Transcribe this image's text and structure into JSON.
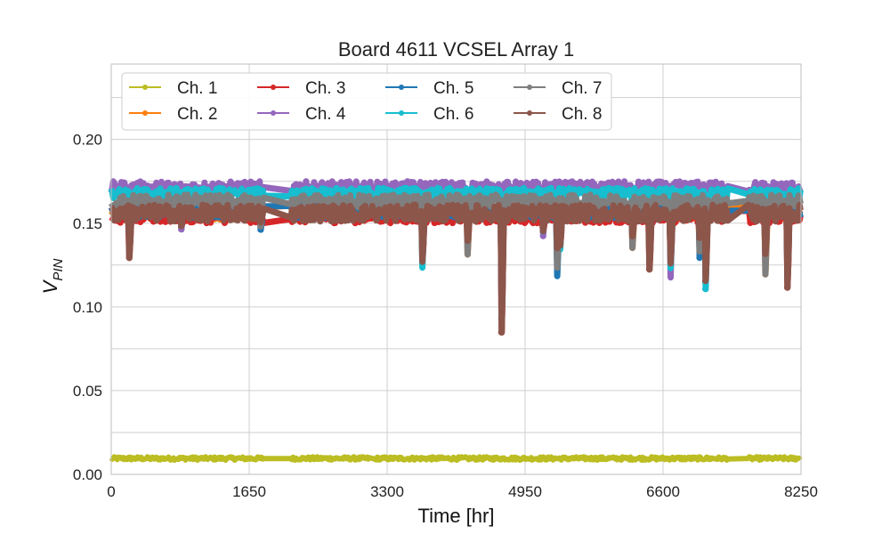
{
  "chart_data": {
    "type": "line",
    "title": "Board 4611 VCSEL Array 1",
    "xlabel": "Time [hr]",
    "ylabel_main": "V",
    "ylabel_sub": "PIN",
    "xlim": [
      0,
      8250
    ],
    "ylim": [
      0,
      0.245
    ],
    "xticks": [
      0,
      1650,
      3300,
      4950,
      6600,
      8250
    ],
    "xtick_labels": [
      "0",
      "1650",
      "3300",
      "4950",
      "6600",
      "8250"
    ],
    "yticks": [
      0.0,
      0.05,
      0.1,
      0.15,
      0.2
    ],
    "ytick_labels": [
      "0.00",
      "0.05",
      "0.10",
      "0.15",
      "0.20"
    ],
    "grid": true,
    "legend_position": "upper-left",
    "legend_columns": 4,
    "series": [
      {
        "name": "Ch. 1",
        "color": "#bcbd22",
        "level": 0.0095,
        "noise": 0.001
      },
      {
        "name": "Ch. 2",
        "color": "#ff7f0e",
        "level": 0.157,
        "noise": 0.005
      },
      {
        "name": "Ch. 3",
        "color": "#d62728",
        "level": 0.154,
        "noise": 0.004
      },
      {
        "name": "Ch. 4",
        "color": "#9467bd",
        "level": 0.171,
        "noise": 0.004
      },
      {
        "name": "Ch. 5",
        "color": "#1f77b4",
        "level": 0.157,
        "noise": 0.004
      },
      {
        "name": "Ch. 6",
        "color": "#17becf",
        "level": 0.168,
        "noise": 0.003
      },
      {
        "name": "Ch. 7",
        "color": "#7f7f7f",
        "level": 0.163,
        "noise": 0.004
      },
      {
        "name": "Ch. 8",
        "color": "#8c564b",
        "level": 0.156,
        "noise": 0.005
      }
    ],
    "segments": [
      [
        0,
        1830
      ],
      [
        2150,
        3130
      ],
      [
        3170,
        4980
      ],
      [
        5010,
        7380
      ],
      [
        7620,
        8250
      ]
    ],
    "dips": [
      {
        "x": 210,
        "value": 0.129
      },
      {
        "x": 830,
        "value": 0.146
      },
      {
        "x": 1780,
        "value": 0.146
      },
      {
        "x": 3720,
        "value": 0.123
      },
      {
        "x": 4260,
        "value": 0.131
      },
      {
        "x": 4660,
        "value": 0.084
      },
      {
        "x": 5160,
        "value": 0.142
      },
      {
        "x": 5330,
        "value": 0.118
      },
      {
        "x": 5360,
        "value": 0.134
      },
      {
        "x": 6230,
        "value": 0.135
      },
      {
        "x": 6430,
        "value": 0.122
      },
      {
        "x": 6690,
        "value": 0.117
      },
      {
        "x": 7030,
        "value": 0.129
      },
      {
        "x": 7100,
        "value": 0.11
      },
      {
        "x": 7820,
        "value": 0.119
      },
      {
        "x": 8080,
        "value": 0.111
      }
    ]
  }
}
